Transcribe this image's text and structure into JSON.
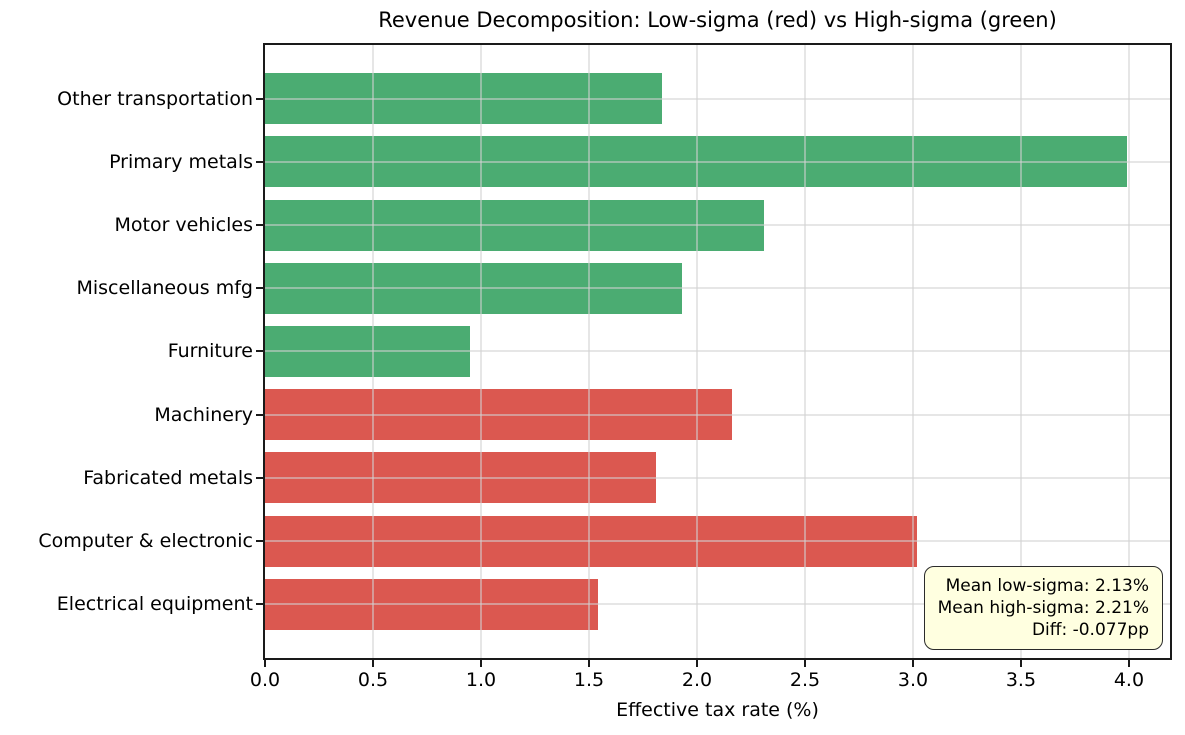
{
  "chart_data": {
    "type": "bar",
    "orientation": "horizontal",
    "title": "Revenue Decomposition: Low-sigma (red) vs High-sigma (green)",
    "xlabel": "Effective tax rate (%)",
    "xlim": [
      0,
      4.19
    ],
    "xticks": [
      0.0,
      0.5,
      1.0,
      1.5,
      2.0,
      2.5,
      3.0,
      3.5,
      4.0
    ],
    "xtick_labels": [
      "0.0",
      "0.5",
      "1.0",
      "1.5",
      "2.0",
      "2.5",
      "3.0",
      "3.5",
      "4.0"
    ],
    "grid": true,
    "grid_over_bars": true,
    "categories": [
      "Other transportation",
      "Primary metals",
      "Motor vehicles",
      "Miscellaneous mfg",
      "Furniture",
      "Machinery",
      "Fabricated metals",
      "Computer & electronic",
      "Electrical equipment"
    ],
    "series": [
      {
        "name": "high-sigma",
        "color": "#4bac72",
        "values": [
          1.84,
          3.99,
          2.31,
          1.93,
          0.95,
          null,
          null,
          null,
          null
        ]
      },
      {
        "name": "low-sigma",
        "color": "#db5850",
        "values": [
          null,
          null,
          null,
          null,
          null,
          2.16,
          1.81,
          3.02,
          1.54
        ]
      }
    ],
    "annotation": {
      "lines": [
        "Mean low-sigma: 2.13%",
        "Mean high-sigma: 2.21%",
        "Diff: -0.077pp"
      ],
      "background": "#ffffe0",
      "border_color": "#2b2b2b",
      "position": "bottom-right"
    },
    "colors": {
      "high_sigma_green": "#4bac72",
      "low_sigma_red": "#db5850",
      "spine": "#1a1a1a",
      "grid": "#e3e3e3"
    }
  }
}
